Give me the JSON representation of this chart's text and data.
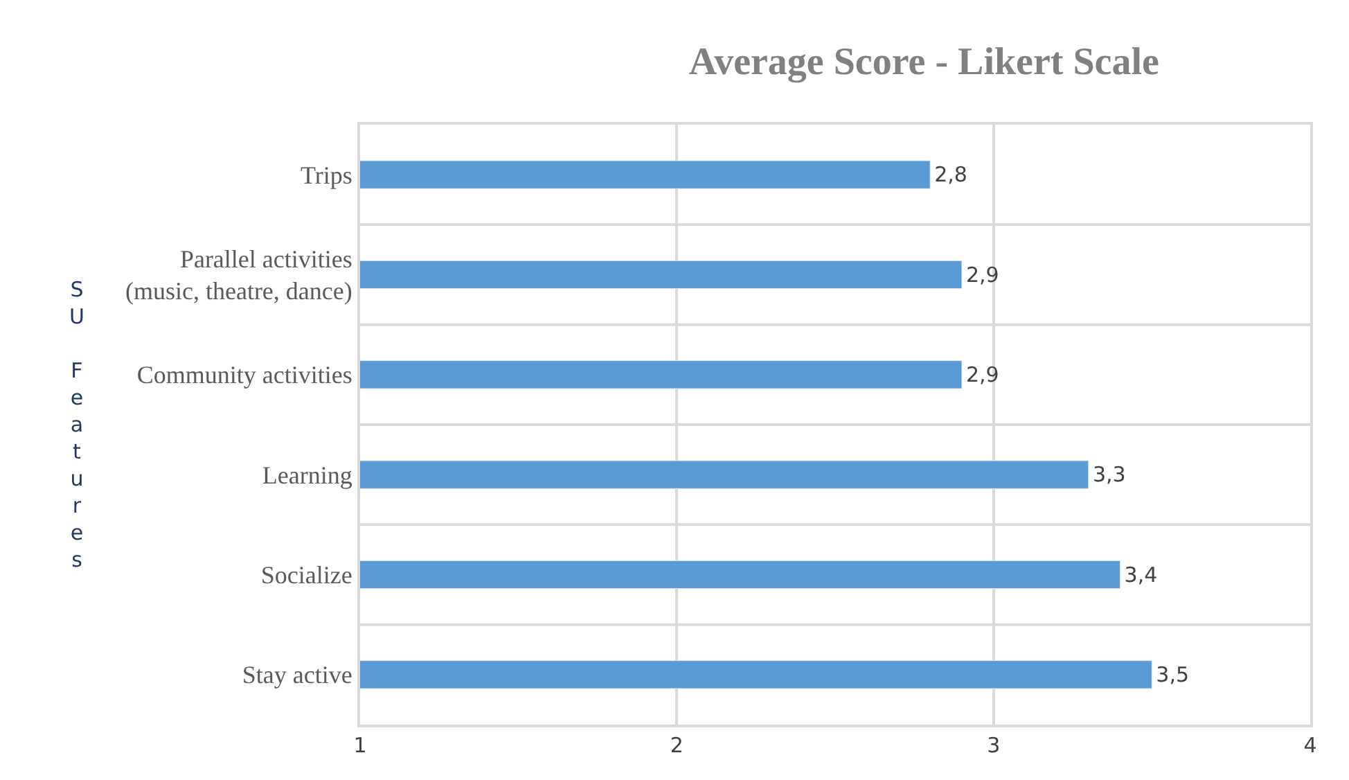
{
  "chart_data": {
    "type": "bar",
    "orientation": "horizontal",
    "title": "Average Score - Likert Scale",
    "ylabel": "SU Features",
    "categories": [
      "Trips",
      "Parallel activities (music, theatre, dance)",
      "Community activities",
      "Learning",
      "Socialize",
      "Stay active"
    ],
    "values": [
      2.8,
      2.9,
      2.9,
      3.3,
      3.4,
      3.5
    ],
    "value_labels": [
      "2,8",
      "2,9",
      "2,9",
      "3,3",
      "3,4",
      "3,5"
    ],
    "color": "#5b9bd5",
    "xlim": [
      1,
      4
    ],
    "xticks": [
      1,
      2,
      3,
      4
    ],
    "grid": true
  }
}
